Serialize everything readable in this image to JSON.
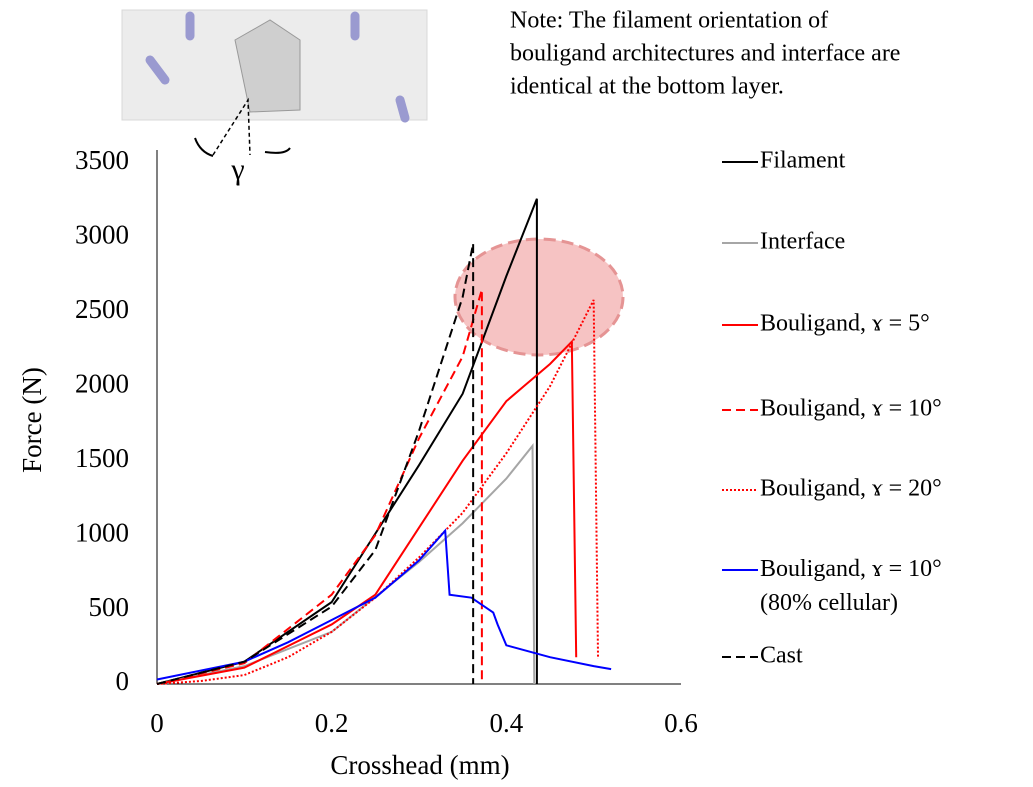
{
  "chart_data": {
    "type": "line",
    "x_label": "Crosshead (mm)",
    "y_label": "Force (N)",
    "xlim": [
      0,
      0.6
    ],
    "xticks": [
      0,
      0.2,
      0.4,
      0.6
    ],
    "ylim": [
      0,
      3500
    ],
    "yticks": [
      0,
      500,
      1000,
      1500,
      2000,
      2500,
      3000,
      3500
    ],
    "note": [
      "Note: The filament orientation of",
      "bouligand architectures and interface are",
      "identical at the bottom layer."
    ],
    "figure_label": "γ",
    "series": [
      {
        "name": "Filament",
        "color": "#000000",
        "style": "solid",
        "x": [
          0,
          0.1,
          0.2,
          0.3,
          0.35,
          0.4,
          0.435,
          0.435
        ],
        "values": [
          0,
          150,
          550,
          1470,
          1950,
          2740,
          3260,
          0
        ]
      },
      {
        "name": "Interface",
        "color": "#a6a6a6",
        "style": "solid",
        "x": [
          0,
          0.1,
          0.2,
          0.3,
          0.35,
          0.4,
          0.43,
          0.432
        ],
        "values": [
          0,
          120,
          350,
          820,
          1080,
          1380,
          1600,
          0
        ]
      },
      {
        "name": "Bouligand, ɤ = 5°",
        "color": "#ff0000",
        "style": "solid",
        "x": [
          0,
          0.1,
          0.2,
          0.25,
          0.3,
          0.35,
          0.4,
          0.42,
          0.45,
          0.475,
          0.48
        ],
        "values": [
          0,
          110,
          400,
          600,
          1050,
          1500,
          1900,
          2000,
          2150,
          2300,
          180
        ]
      },
      {
        "name": "Bouligand, ɤ = 10°",
        "color": "#ff0000",
        "style": "dashed",
        "x": [
          0,
          0.1,
          0.2,
          0.25,
          0.3,
          0.35,
          0.372,
          0.372
        ],
        "values": [
          0,
          140,
          600,
          1000,
          1650,
          2200,
          2650,
          0
        ]
      },
      {
        "name": "Bouligand, ɤ = 20°",
        "color": "#ff0000",
        "style": "dotted",
        "x": [
          0,
          0.05,
          0.1,
          0.15,
          0.2,
          0.25,
          0.3,
          0.35,
          0.4,
          0.45,
          0.5,
          0.505
        ],
        "values": [
          0,
          20,
          60,
          180,
          350,
          580,
          850,
          1150,
          1550,
          2000,
          2580,
          170
        ]
      },
      {
        "name": "Bouligand, ɤ = 10°\n(80% cellular)",
        "color": "#0000ff",
        "style": "solid",
        "x": [
          0,
          0.1,
          0.15,
          0.2,
          0.25,
          0.3,
          0.33,
          0.335,
          0.36,
          0.38,
          0.385,
          0.39,
          0.4,
          0.45,
          0.5,
          0.52
        ],
        "values": [
          30,
          150,
          280,
          430,
          580,
          830,
          1030,
          600,
          580,
          500,
          480,
          400,
          260,
          180,
          120,
          100
        ]
      },
      {
        "name": "Cast",
        "color": "#000000",
        "style": "dashed",
        "x": [
          0,
          0.1,
          0.2,
          0.25,
          0.3,
          0.35,
          0.362,
          0.362
        ],
        "values": [
          0,
          150,
          520,
          900,
          1700,
          2600,
          2960,
          0
        ]
      }
    ]
  }
}
